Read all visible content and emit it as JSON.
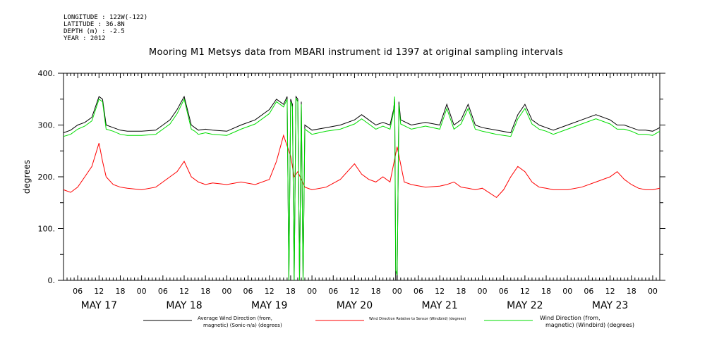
{
  "header": {
    "longitude": "LONGITUDE : 122W(-122)",
    "latitude": "LATITUDE : 36.8N",
    "depth": "DEPTH (m) : -2.5",
    "year": "YEAR : 2012"
  },
  "chart_data": {
    "type": "line",
    "title": "Mooring M1 Metsys data from MBARI instrument id 1397 at original sampling intervals",
    "ylabel": "degrees",
    "xlabel": "",
    "ylim": [
      0,
      400
    ],
    "xlim_hours": [
      2,
      170
    ],
    "y_ticks": [
      "0.",
      "100.",
      "200.",
      "300.",
      "400."
    ],
    "x_hour_ticks": [
      "06",
      "12",
      "18",
      "00",
      "06",
      "12",
      "18",
      "00",
      "06",
      "12",
      "18",
      "00",
      "06",
      "12",
      "18",
      "00",
      "06",
      "12",
      "18",
      "00",
      "06",
      "12",
      "18",
      "00",
      "06",
      "12",
      "18",
      "00"
    ],
    "x_day_labels": [
      "MAY 17",
      "MAY 18",
      "MAY 19",
      "MAY 20",
      "MAY 21",
      "MAY 22",
      "MAY 23"
    ],
    "grid": false,
    "legend_position": "bottom",
    "series": [
      {
        "name_line1": "Average Wind Direction (from,",
        "name_line2": "magnetic) (Sonic-n/a) (degrees)",
        "color": "#000000",
        "x_hours": [
          2,
          4,
          6,
          8,
          10,
          12,
          13,
          14,
          16,
          18,
          20,
          24,
          28,
          30,
          32,
          34,
          36,
          38,
          39,
          40,
          42,
          44,
          48,
          52,
          56,
          60,
          62,
          64,
          65,
          65.5,
          66,
          66.5,
          67,
          67.5,
          68,
          68.5,
          69,
          69.5,
          70,
          72,
          76,
          80,
          84,
          86,
          88,
          90,
          92,
          94,
          95,
          95.3,
          95.6,
          96,
          96.5,
          97,
          100,
          104,
          108,
          110,
          112,
          114,
          116,
          118,
          120,
          124,
          128,
          130,
          132,
          134,
          136,
          138,
          140,
          144,
          148,
          152,
          156,
          158,
          160,
          162,
          164,
          166,
          168,
          170
        ],
        "values": [
          285,
          290,
          300,
          305,
          315,
          355,
          350,
          300,
          295,
          290,
          288,
          288,
          290,
          300,
          310,
          330,
          355,
          300,
          295,
          290,
          292,
          290,
          288,
          300,
          310,
          330,
          350,
          340,
          355,
          0,
          350,
          340,
          0,
          355,
          350,
          0,
          345,
          0,
          300,
          290,
          295,
          300,
          310,
          320,
          310,
          300,
          305,
          300,
          330,
          350,
          0,
          0,
          345,
          310,
          300,
          305,
          300,
          340,
          300,
          310,
          340,
          300,
          295,
          290,
          285,
          320,
          340,
          310,
          300,
          295,
          290,
          300,
          310,
          320,
          310,
          300,
          300,
          295,
          290,
          290,
          288,
          295
        ]
      },
      {
        "name_line1": "Wind Direction Relative to Sensor (Windbird) (degrees)",
        "name_line2": "",
        "color": "#ff0000",
        "x_hours": [
          2,
          4,
          6,
          8,
          10,
          12,
          13,
          14,
          16,
          18,
          20,
          24,
          28,
          30,
          32,
          34,
          36,
          38,
          40,
          42,
          44,
          48,
          52,
          56,
          60,
          62,
          64,
          66,
          67,
          68,
          70,
          72,
          76,
          80,
          84,
          86,
          88,
          90,
          92,
          94,
          96,
          98,
          100,
          104,
          108,
          110,
          112,
          114,
          116,
          118,
          120,
          124,
          126,
          128,
          130,
          132,
          134,
          136,
          138,
          140,
          144,
          148,
          152,
          156,
          158,
          160,
          162,
          164,
          166,
          168,
          170
        ],
        "values": [
          175,
          170,
          180,
          200,
          220,
          265,
          230,
          200,
          185,
          180,
          178,
          175,
          180,
          190,
          200,
          210,
          230,
          200,
          190,
          185,
          188,
          185,
          190,
          185,
          195,
          230,
          280,
          240,
          200,
          210,
          180,
          175,
          180,
          195,
          225,
          205,
          195,
          190,
          200,
          190,
          258,
          190,
          185,
          180,
          182,
          185,
          190,
          180,
          178,
          175,
          178,
          160,
          175,
          200,
          220,
          210,
          190,
          180,
          178,
          175,
          175,
          180,
          190,
          200,
          210,
          195,
          185,
          178,
          175,
          175,
          178
        ]
      },
      {
        "name_line1": "Wind Direction (from,",
        "name_line2": "magnetic) (Windbird) (degrees)",
        "color": "#00dd00",
        "x_hours": [
          2,
          4,
          6,
          8,
          10,
          12,
          13,
          14,
          16,
          18,
          20,
          24,
          28,
          30,
          32,
          34,
          36,
          38,
          39,
          40,
          42,
          44,
          48,
          52,
          56,
          60,
          62,
          64,
          65,
          65.5,
          66,
          66.5,
          67,
          67.5,
          68,
          68.5,
          69,
          69.5,
          70,
          72,
          76,
          80,
          84,
          86,
          88,
          90,
          92,
          94,
          95,
          95.3,
          95.6,
          96,
          96.5,
          97,
          100,
          104,
          108,
          110,
          112,
          114,
          116,
          118,
          120,
          124,
          128,
          130,
          132,
          134,
          136,
          138,
          140,
          144,
          148,
          152,
          156,
          158,
          160,
          162,
          164,
          166,
          168,
          170
        ],
        "values": [
          278,
          282,
          292,
          298,
          308,
          350,
          345,
          292,
          288,
          282,
          280,
          280,
          282,
          292,
          302,
          322,
          350,
          292,
          288,
          282,
          285,
          282,
          280,
          292,
          302,
          322,
          345,
          335,
          350,
          0,
          345,
          335,
          0,
          352,
          345,
          0,
          340,
          0,
          292,
          282,
          288,
          292,
          302,
          312,
          302,
          292,
          298,
          292,
          325,
          355,
          20,
          10,
          340,
          302,
          292,
          298,
          292,
          332,
          292,
          302,
          332,
          292,
          288,
          282,
          278,
          312,
          332,
          302,
          292,
          288,
          282,
          292,
          302,
          312,
          302,
          292,
          292,
          288,
          282,
          282,
          280,
          288
        ]
      }
    ]
  }
}
